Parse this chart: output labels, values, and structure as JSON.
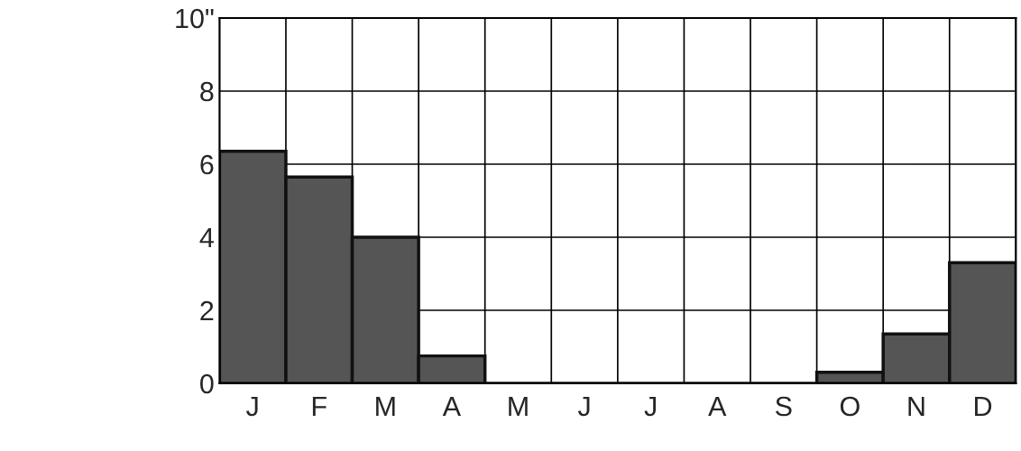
{
  "chart_data": {
    "type": "bar",
    "categories": [
      "J",
      "F",
      "M",
      "A",
      "M",
      "J",
      "J",
      "A",
      "S",
      "O",
      "N",
      "D"
    ],
    "values": [
      6.35,
      5.65,
      4.0,
      0.75,
      0,
      0,
      0,
      0,
      0,
      0.3,
      1.35,
      3.3
    ],
    "color": "#555555",
    "ylim": [
      0,
      10
    ],
    "yticks": [
      0,
      2,
      4,
      6,
      8,
      {
        "value": 10,
        "label": "10\""
      }
    ],
    "grid": true
  }
}
